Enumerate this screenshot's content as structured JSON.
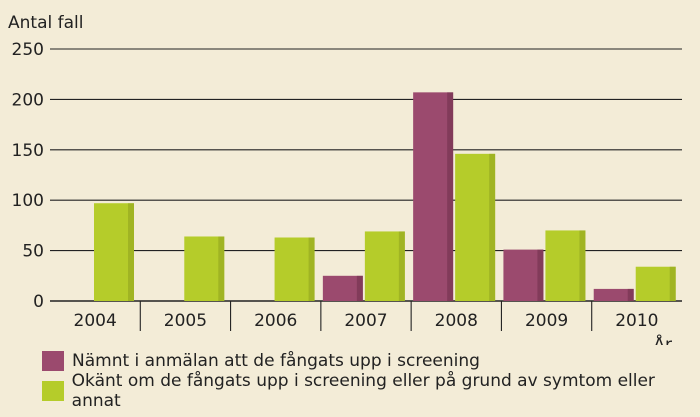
{
  "chart_data": {
    "type": "bar",
    "ylabel": "Antal fall",
    "xlabel": "År",
    "categories": [
      "2004",
      "2005",
      "2006",
      "2007",
      "2008",
      "2009",
      "2010"
    ],
    "ylim": [
      0,
      250
    ],
    "yticks": [
      0,
      50,
      100,
      150,
      200,
      250
    ],
    "grid": true,
    "legend_placement": "bottom",
    "series": [
      {
        "name": "Nämnt i anmälan att de fångats upp i screening",
        "color": "#9b4a6e",
        "values": [
          0,
          0,
          0,
          25,
          207,
          51,
          12
        ]
      },
      {
        "name": "Okänt om de fångats upp i screening eller på grund av symtom eller annat",
        "color": "#b5cc2a",
        "values": [
          97,
          64,
          63,
          69,
          146,
          70,
          34
        ]
      }
    ]
  }
}
